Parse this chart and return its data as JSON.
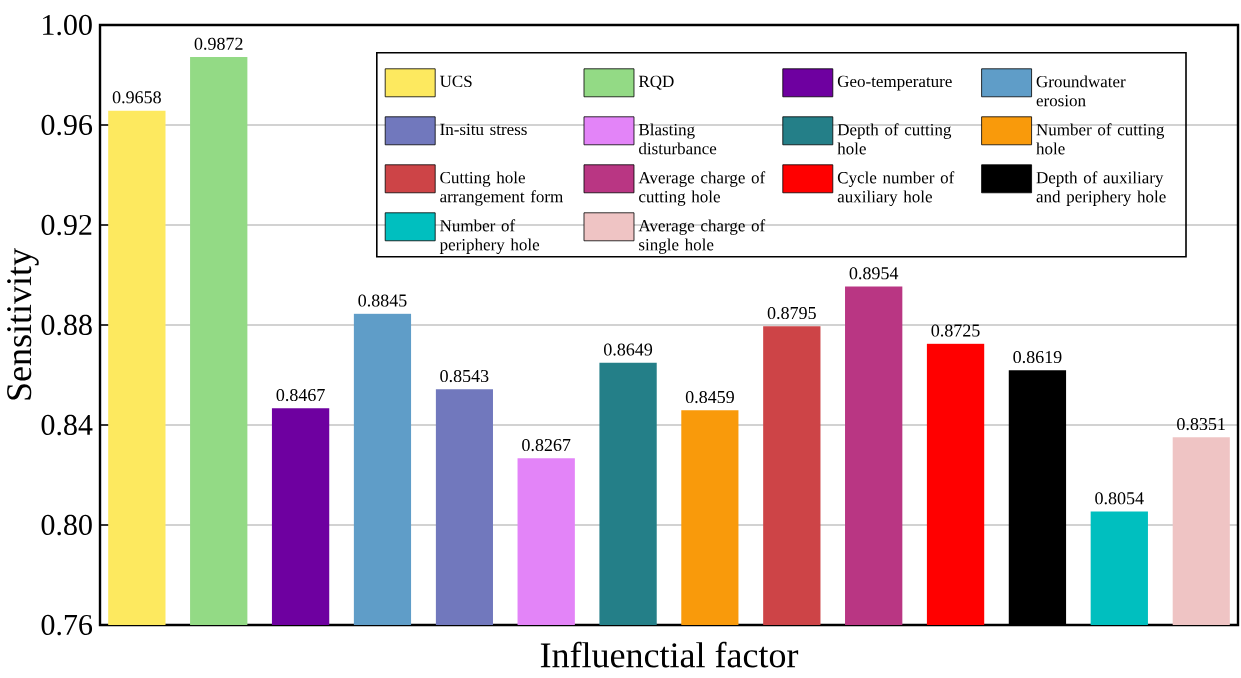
{
  "chart_data": {
    "type": "bar",
    "xlabel": "Influenctial factor",
    "ylabel": "Sensitivity",
    "categories": [
      null,
      null,
      null,
      null,
      null,
      null,
      null,
      null,
      null,
      null,
      null,
      null,
      null,
      null
    ],
    "series": [
      {
        "name": "UCS",
        "color": "#fde95f",
        "values": [
          0.9658,
          null,
          null,
          null,
          null,
          null,
          null,
          null,
          null,
          null,
          null,
          null,
          null,
          null
        ]
      },
      {
        "name": "RQD",
        "color": "#93da85",
        "values": [
          null,
          0.9872,
          null,
          null,
          null,
          null,
          null,
          null,
          null,
          null,
          null,
          null,
          null,
          null
        ]
      },
      {
        "name": "Geo-temperature",
        "color": "#6e00a0",
        "values": [
          null,
          null,
          0.8467,
          null,
          null,
          null,
          null,
          null,
          null,
          null,
          null,
          null,
          null,
          null
        ]
      },
      {
        "name": "Groundwater erosion",
        "color": "#5f9dc8",
        "values": [
          null,
          null,
          null,
          0.8845,
          null,
          null,
          null,
          null,
          null,
          null,
          null,
          null,
          null,
          null
        ]
      },
      {
        "name": "In-situ stress",
        "color": "#7178bd",
        "values": [
          null,
          null,
          null,
          null,
          0.8543,
          null,
          null,
          null,
          null,
          null,
          null,
          null,
          null,
          null
        ]
      },
      {
        "name": "Blasting disturbance",
        "color": "#e384f8",
        "values": [
          null,
          null,
          null,
          null,
          null,
          0.8267,
          null,
          null,
          null,
          null,
          null,
          null,
          null,
          null
        ]
      },
      {
        "name": "Depth of cutting hole",
        "color": "#247f88",
        "values": [
          null,
          null,
          null,
          null,
          null,
          null,
          0.8649,
          null,
          null,
          null,
          null,
          null,
          null,
          null
        ]
      },
      {
        "name": "Number of cutting hole",
        "color": "#f99a0b",
        "values": [
          null,
          null,
          null,
          null,
          null,
          null,
          null,
          0.8459,
          null,
          null,
          null,
          null,
          null,
          null
        ]
      },
      {
        "name": "Cutting hole arrangement form",
        "color": "#cd4447",
        "values": [
          null,
          null,
          null,
          null,
          null,
          null,
          null,
          null,
          0.8795,
          null,
          null,
          null,
          null,
          null
        ]
      },
      {
        "name": "Average charge of cutting hole",
        "color": "#b93683",
        "values": [
          null,
          null,
          null,
          null,
          null,
          null,
          null,
          null,
          null,
          0.8954,
          null,
          null,
          null,
          null
        ]
      },
      {
        "name": "Cycle number of auxiliary hole",
        "color": "#ff0000",
        "values": [
          null,
          null,
          null,
          null,
          null,
          null,
          null,
          null,
          null,
          null,
          0.8725,
          null,
          null,
          null
        ]
      },
      {
        "name": "Depth of auxiliary and periphery hole",
        "color": "#000000",
        "values": [
          null,
          null,
          null,
          null,
          null,
          null,
          null,
          null,
          null,
          null,
          null,
          0.8619,
          null,
          null
        ]
      },
      {
        "name": "Number of periphery hole",
        "color": "#00bfbf",
        "values": [
          null,
          null,
          null,
          null,
          null,
          null,
          null,
          null,
          null,
          null,
          null,
          null,
          0.8054,
          null
        ]
      },
      {
        "name": "Average charge of single hole",
        "color": "#efc4c4",
        "values": [
          null,
          null,
          null,
          null,
          null,
          null,
          null,
          null,
          null,
          null,
          null,
          null,
          null,
          0.8351
        ]
      }
    ],
    "ylim": [
      0.76,
      1.0
    ],
    "yticks": [
      {
        "value": 0.76,
        "label": "0.76"
      },
      {
        "value": 0.8,
        "label": "0.80"
      },
      {
        "value": 0.84,
        "label": "0.84"
      },
      {
        "value": 0.88,
        "label": "0.88"
      },
      {
        "value": 0.92,
        "label": "0.92"
      },
      {
        "value": 0.96,
        "label": "0.96"
      },
      {
        "value": 1.0,
        "label": "1.00"
      }
    ],
    "grid": "y",
    "legend": "top right",
    "data_labels": true
  }
}
